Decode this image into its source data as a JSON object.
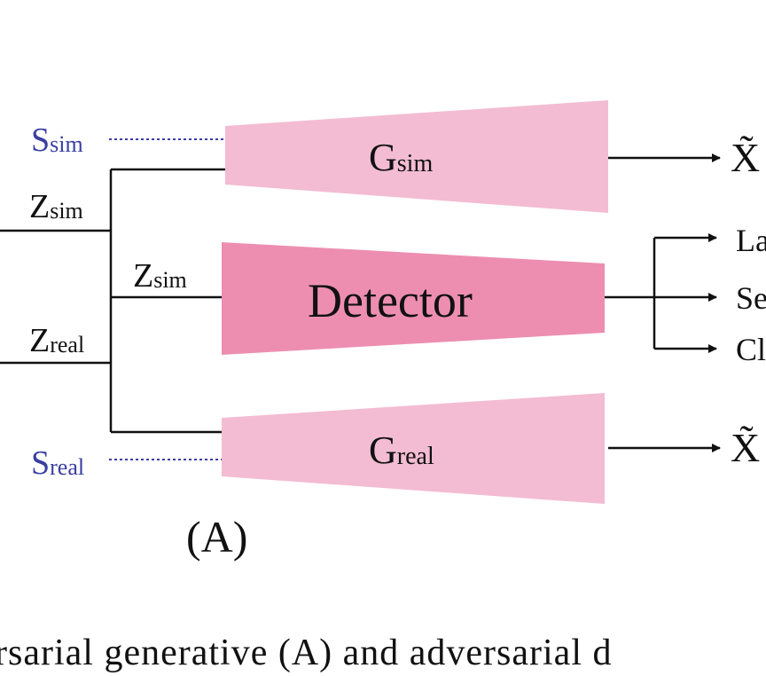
{
  "labels": {
    "s_sim": {
      "main": "S",
      "sub": "sim"
    },
    "s_real": {
      "main": "S",
      "sub": "real"
    },
    "z_sim_left": {
      "main": "Z",
      "sub": "sim"
    },
    "z_real_left": {
      "main": "Z",
      "sub": "real"
    },
    "z_sim_mid": {
      "main": "Z",
      "sub": "sim"
    },
    "g_sim": {
      "main": "G",
      "sub": "sim"
    },
    "g_real": {
      "main": "G",
      "sub": "real"
    },
    "detector": "Detector",
    "out_sim": "X̃",
    "out_real": "X̃",
    "out_la": "La",
    "out_se": "Se",
    "out_cl": "Cl",
    "panel": "(A)"
  },
  "colors": {
    "generator_fill": "#f3bcd2",
    "detector_fill": "#ed8eb0",
    "style_text": "#3a3fa0",
    "dotted_line": "#3a3fa0"
  },
  "caption": "rsarial generative (A) and adversarial d"
}
